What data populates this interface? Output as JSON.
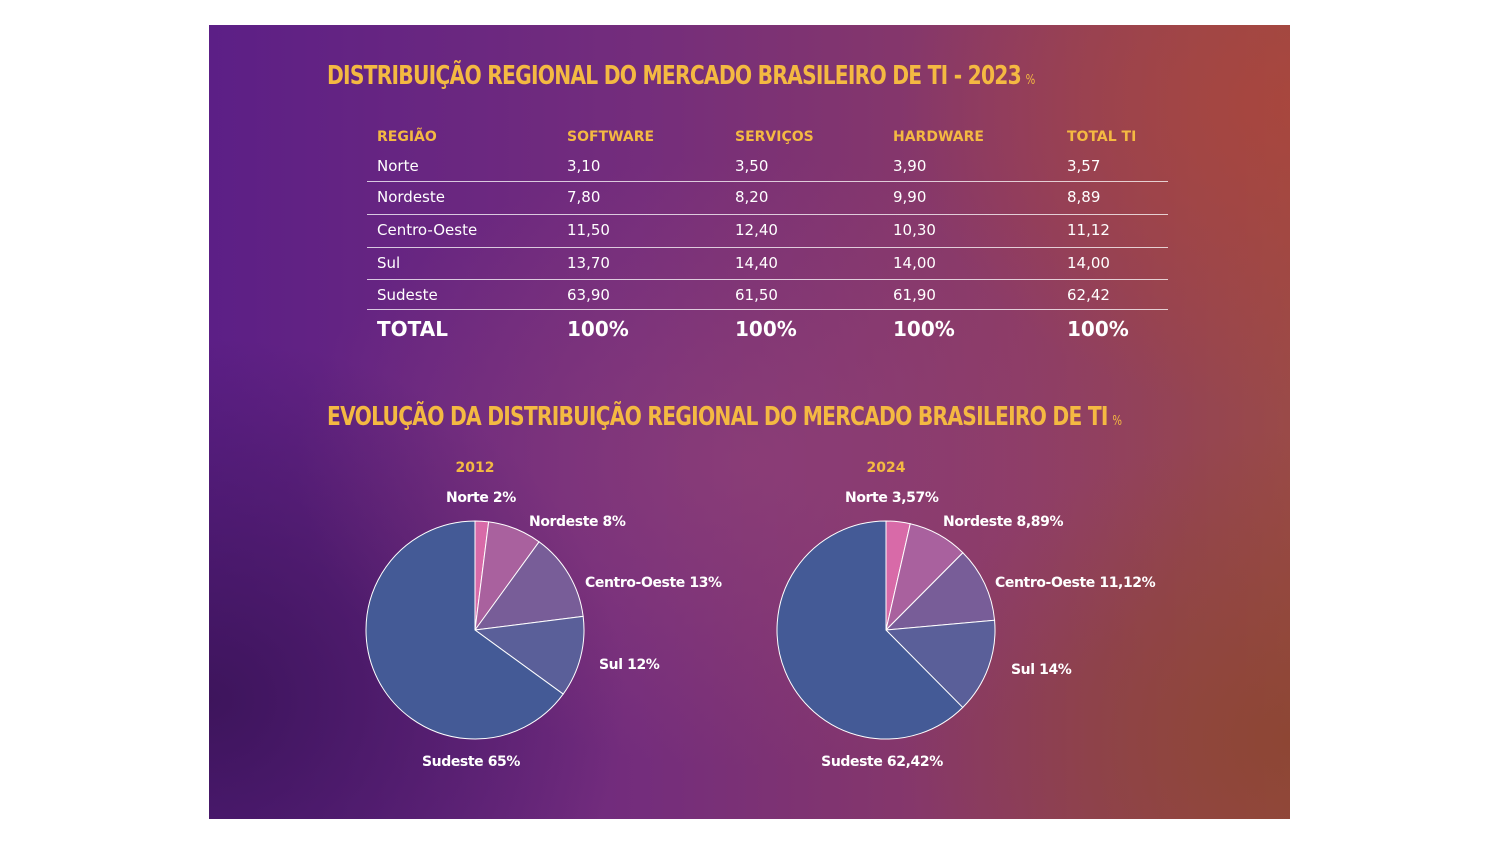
{
  "table": {
    "title": "DISTRIBUIÇÃO REGIONAL DO MERCADO BRASILEIRO DE TI - 2023",
    "unit": "%",
    "headers": [
      "REGIÃO",
      "SOFTWARE",
      "SERVIÇOS",
      "HARDWARE",
      "TOTAL TI"
    ],
    "rows": [
      [
        "Norte",
        "3,10",
        "3,50",
        "3,90",
        "3,57"
      ],
      [
        "Nordeste",
        "7,80",
        "8,20",
        "9,90",
        "8,89"
      ],
      [
        "Centro-Oeste",
        "11,50",
        "12,40",
        "10,30",
        "11,12"
      ],
      [
        "Sul",
        "13,70",
        "14,40",
        "14,00",
        "14,00"
      ],
      [
        "Sudeste",
        "63,90",
        "61,50",
        "61,90",
        "62,42"
      ]
    ],
    "total": [
      "TOTAL",
      "100%",
      "100%",
      "100%",
      "100%"
    ]
  },
  "evolution": {
    "title": "EVOLUÇÃO DA DISTRIBUIÇÃO REGIONAL DO MERCADO BRASILEIRO DE TI",
    "unit": "%"
  },
  "colors": {
    "heading": "#f4b942",
    "norte": "#d86aa8",
    "nordeste": "#a9619e",
    "centro_oeste": "#785d98",
    "sul": "#5a5f99",
    "sudeste": "#445a96"
  },
  "chart_data": [
    {
      "type": "pie",
      "title": "2012",
      "categories": [
        "Norte",
        "Nordeste",
        "Centro-Oeste",
        "Sul",
        "Sudeste"
      ],
      "values": [
        2,
        8,
        13,
        12,
        65
      ],
      "labels": [
        "Norte 2%",
        "Nordeste 8%",
        "Centro-Oeste 13%",
        "Sul 12%",
        "Sudeste 65%"
      ]
    },
    {
      "type": "pie",
      "title": "2024",
      "categories": [
        "Norte",
        "Nordeste",
        "Centro-Oeste",
        "Sul",
        "Sudeste"
      ],
      "values": [
        3.57,
        8.89,
        11.12,
        14,
        62.42
      ],
      "labels": [
        "Norte 3,57%",
        "Nordeste 8,89%",
        "Centro-Oeste 11,12%",
        "Sul 14%",
        "Sudeste 62,42%"
      ]
    }
  ]
}
